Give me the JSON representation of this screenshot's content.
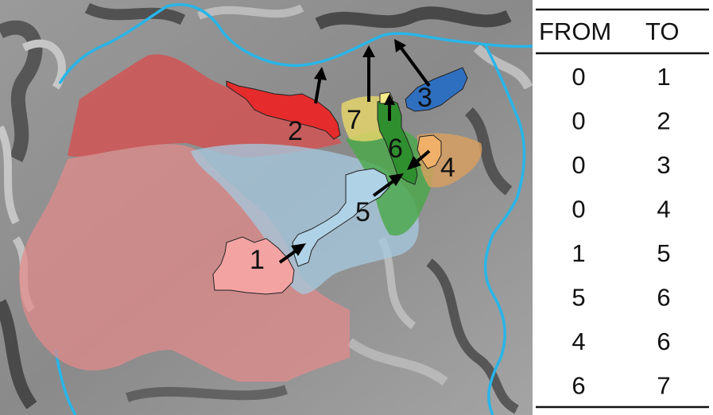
{
  "regions": [
    {
      "label": "1",
      "color": "#f2a6a6"
    },
    {
      "label": "2",
      "color": "#e52b2b"
    },
    {
      "label": "3",
      "color": "#2f6fc0"
    },
    {
      "label": "4",
      "color": "#f0b069"
    },
    {
      "label": "5",
      "color": "#9cc7df"
    },
    {
      "label": "6",
      "color": "#3a9e3a"
    },
    {
      "label": "7",
      "color": "#eee07a"
    }
  ],
  "boundary_color": "#29b5e8",
  "table": {
    "headers": [
      "FROM",
      "TO"
    ],
    "rows": [
      [
        "0",
        "1"
      ],
      [
        "0",
        "2"
      ],
      [
        "0",
        "3"
      ],
      [
        "0",
        "4"
      ],
      [
        "1",
        "5"
      ],
      [
        "5",
        "6"
      ],
      [
        "4",
        "6"
      ],
      [
        "6",
        "7"
      ]
    ]
  }
}
